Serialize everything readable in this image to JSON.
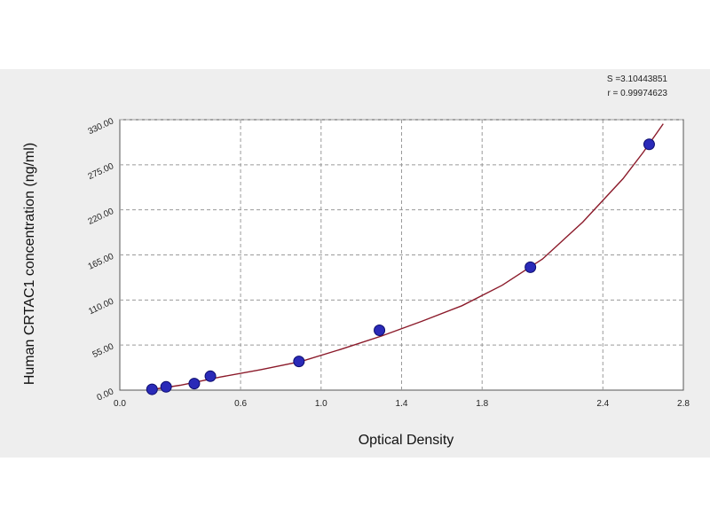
{
  "chart_data": {
    "type": "scatter",
    "title": "",
    "xlabel": "Optical Density",
    "ylabel": "Human CRTAC1 concentration (ng/ml)",
    "xlim": [
      0.0,
      2.8
    ],
    "ylim": [
      0.0,
      330.0
    ],
    "x_ticks": [
      "0.0",
      "0.6",
      "1.0",
      "1.4",
      "1.8",
      "2.4",
      "2.8"
    ],
    "y_ticks": [
      "0.00",
      "55.00",
      "110.00",
      "165.00",
      "220.00",
      "275.00",
      "330.00"
    ],
    "grid": true,
    "fit_stats": [
      "S =3.10443851",
      "r = 0.99974623"
    ],
    "series": [
      {
        "x": [
          0.16,
          0.23,
          0.37,
          0.45,
          0.89,
          1.29,
          2.04,
          2.63
        ],
        "y": [
          1.0,
          4.0,
          8.0,
          17.0,
          35.0,
          73.0,
          150.0,
          300.0
        ]
      }
    ],
    "fit_curve": {
      "x": [
        0.14,
        0.3,
        0.5,
        0.7,
        0.9,
        1.1,
        1.3,
        1.5,
        1.7,
        1.9,
        2.1,
        2.3,
        2.5,
        2.6,
        2.7
      ],
      "y": [
        0.0,
        6.0,
        16.0,
        25.0,
        35.0,
        50.0,
        66.0,
        84.0,
        103.0,
        128.0,
        160.0,
        205.0,
        258.0,
        290.0,
        325.0
      ]
    },
    "colors": {
      "marker": "#2a2ab8",
      "marker_edge": "#0d0d6e",
      "curve": "#8b1a2a",
      "grid": "#9a9a9a",
      "panel": "#eeeeee",
      "plot_bg": "#ffffff"
    }
  }
}
